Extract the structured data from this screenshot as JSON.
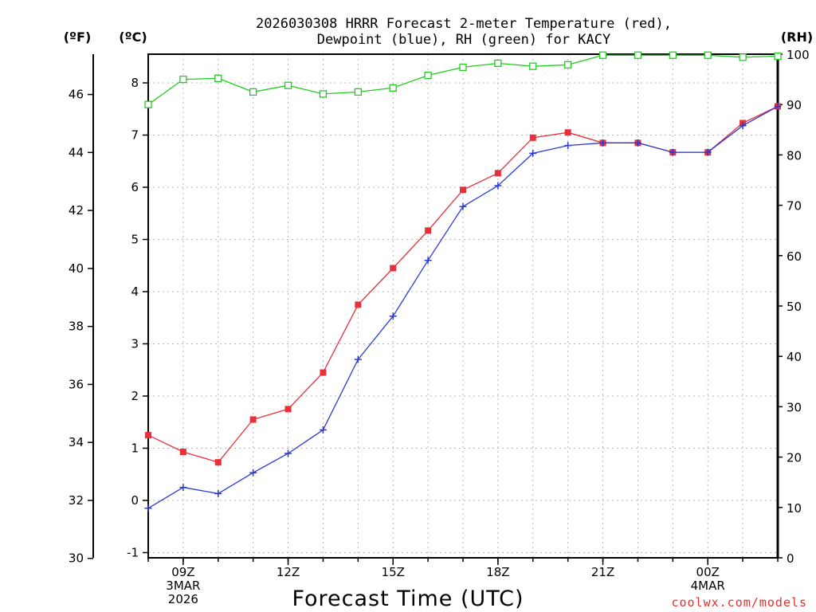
{
  "chart_data": {
    "type": "line",
    "title_lines": [
      "2026030308 HRRR Forecast 2-meter Temperature (red),",
      "Dewpoint (blue), RH (green) for KACY"
    ],
    "xlabel": "Forecast Time (UTC)",
    "credit": "coolwx.com/models",
    "unit_labels": {
      "fahrenheit": "(ºF)",
      "celsius": "(ºC)",
      "rh": "(RH)"
    },
    "x_hours": [
      8,
      9,
      10,
      11,
      12,
      13,
      14,
      15,
      16,
      17,
      18,
      19,
      20,
      21,
      22,
      23,
      24,
      25,
      26
    ],
    "x_range": [
      8,
      26
    ],
    "x_ticks": [
      {
        "hour": 9,
        "lines": [
          "09Z",
          "3MAR",
          "2026"
        ]
      },
      {
        "hour": 12,
        "lines": [
          "12Z"
        ]
      },
      {
        "hour": 15,
        "lines": [
          "15Z"
        ]
      },
      {
        "hour": 18,
        "lines": [
          "18Z"
        ]
      },
      {
        "hour": 21,
        "lines": [
          "21Z"
        ]
      },
      {
        "hour": 24,
        "lines": [
          "00Z",
          "4MAR"
        ]
      }
    ],
    "celsius_range": [
      -1.1,
      8.55
    ],
    "celsius_ticks": [
      "-1",
      "0",
      "1",
      "2",
      "3",
      "4",
      "5",
      "6",
      "7",
      "8"
    ],
    "fahrenheit_ticks": [
      "30",
      "32",
      "34",
      "36",
      "38",
      "40",
      "42",
      "44",
      "46"
    ],
    "rh_range": [
      0,
      100
    ],
    "rh_ticks": [
      "0",
      "10",
      "20",
      "30",
      "40",
      "50",
      "60",
      "70",
      "80",
      "90",
      "100"
    ],
    "series": [
      {
        "name": "Temperature",
        "unit": "°C",
        "color": "#e8303a",
        "marker": "filled-square",
        "values": [
          1.25,
          0.93,
          0.73,
          1.55,
          1.75,
          2.45,
          3.75,
          4.45,
          5.17,
          5.95,
          6.27,
          6.95,
          7.05,
          6.85,
          6.85,
          6.67,
          6.67,
          7.23,
          7.55
        ]
      },
      {
        "name": "Dewpoint",
        "unit": "°C",
        "color": "#2a3ad8",
        "marker": "plus",
        "values": [
          -0.15,
          0.25,
          0.13,
          0.53,
          0.9,
          1.35,
          2.7,
          3.53,
          4.6,
          5.63,
          6.03,
          6.65,
          6.8,
          6.85,
          6.85,
          6.67,
          6.67,
          7.18,
          7.55
        ]
      },
      {
        "name": "RH",
        "unit": "%",
        "color": "#22cc22",
        "marker": "open-square",
        "values": [
          90,
          95,
          95.2,
          92.5,
          93.8,
          92.1,
          92.5,
          93.3,
          95.8,
          97.4,
          98.2,
          97.6,
          97.9,
          99.8,
          99.8,
          99.8,
          99.8,
          99.4,
          99.6
        ]
      }
    ]
  }
}
